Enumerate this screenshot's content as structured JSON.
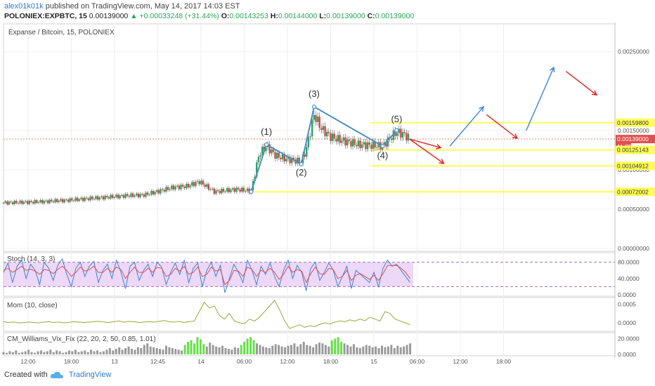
{
  "header": {
    "user": "alex01k01k",
    "published_text": "published on TradingView.com, May 14, 2017 14:03 EST",
    "symbol": "POLONIEX:EXPBTC, 15",
    "last": "0.00139000",
    "change": "+0.00033248 (+31.44%)",
    "open_label": "O:",
    "open": "0.00143253",
    "high_label": "H:",
    "high": "0.00144000",
    "low_label": "L:",
    "low": "0.00139000",
    "close_label": "C:",
    "close": "0.00139000"
  },
  "colors": {
    "up": "#26a65b",
    "down": "#d64545",
    "wave": "#4a90c4",
    "forecast_red": "#e02020",
    "forecast_blue": "#3a86d4",
    "level_line": "#ffff55",
    "stoch_band": "#e6c8f5",
    "stoch_k": "#3a86d4",
    "stoch_d": "#e05050",
    "mom": "#9aa63a",
    "vix_up": "#66e04a",
    "vix_down": "#9a9a9a"
  },
  "chart_data": [
    {
      "type": "candlestick",
      "title": "Expanse / Bitcoin, 15, POLONIEX",
      "ylim": [
        0.0,
        0.0028
      ],
      "y_ticks": [
        "0.00250000",
        "0.00150000",
        "0.00100000",
        "0.00050000",
        "0.00000000"
      ],
      "x_ticks": [
        "12:00",
        "18:00",
        "13",
        "12:45",
        "14",
        "06:00",
        "12:00",
        "18:00",
        "15",
        "06:00",
        "12:00",
        "18:00"
      ],
      "price_labels": [
        {
          "text": "0.00159800",
          "value": 0.001598
        },
        {
          "text": "0.00139000",
          "value": 0.00139,
          "current": true
        },
        {
          "text": "11:35",
          "value": 0.001295,
          "timer": true
        },
        {
          "text": "0.00125143",
          "value": 0.00125143
        },
        {
          "text": "0.00104912",
          "value": 0.00104912
        },
        {
          "text": "0.00072002",
          "value": 0.00072002
        }
      ],
      "horizontal_levels": [
        0.001598,
        0.00125143,
        0.00104912,
        0.00072002
      ],
      "wave_labels": [
        "(1)",
        "(2)",
        "(3)",
        "(4)",
        "(5)"
      ],
      "wave_points": [
        {
          "t": 0.405,
          "v": 0.00072
        },
        {
          "t": 0.43,
          "v": 0.00132
        },
        {
          "t": 0.487,
          "v": 0.00107
        },
        {
          "t": 0.508,
          "v": 0.0018
        },
        {
          "t": 0.62,
          "v": 0.0013
        },
        {
          "t": 0.643,
          "v": 0.0015
        }
      ],
      "price_path": [
        [
          0.0,
          0.00058
        ],
        [
          0.05,
          0.00059
        ],
        [
          0.1,
          0.00061
        ],
        [
          0.15,
          0.00064
        ],
        [
          0.2,
          0.00067
        ],
        [
          0.23,
          0.00068
        ],
        [
          0.255,
          0.00073
        ],
        [
          0.28,
          0.00078
        ],
        [
          0.3,
          0.00079
        ],
        [
          0.32,
          0.00085
        ],
        [
          0.345,
          0.00072
        ],
        [
          0.38,
          0.00075
        ],
        [
          0.405,
          0.00073
        ],
        [
          0.418,
          0.0012
        ],
        [
          0.43,
          0.0013
        ],
        [
          0.445,
          0.00118
        ],
        [
          0.46,
          0.00114
        ],
        [
          0.475,
          0.00112
        ],
        [
          0.487,
          0.0011
        ],
        [
          0.495,
          0.00125
        ],
        [
          0.508,
          0.0017
        ],
        [
          0.52,
          0.00152
        ],
        [
          0.535,
          0.00142
        ],
        [
          0.55,
          0.00138
        ],
        [
          0.565,
          0.00135
        ],
        [
          0.58,
          0.00132
        ],
        [
          0.6,
          0.00131
        ],
        [
          0.62,
          0.0013
        ],
        [
          0.632,
          0.0014
        ],
        [
          0.643,
          0.00148
        ],
        [
          0.655,
          0.00145
        ],
        [
          0.665,
          0.00139
        ]
      ],
      "forecast_arrows": [
        {
          "from": [
            0.664,
            0.00139
          ],
          "to": [
            0.715,
            0.00128
          ],
          "color": "red"
        },
        {
          "from": [
            0.664,
            0.00139
          ],
          "to": [
            0.72,
            0.00108
          ],
          "color": "red"
        },
        {
          "from": [
            0.73,
            0.0013
          ],
          "to": [
            0.785,
            0.0018
          ],
          "color": "blue"
        },
        {
          "from": [
            0.79,
            0.0017
          ],
          "to": [
            0.84,
            0.0014
          ],
          "color": "red"
        },
        {
          "from": [
            0.855,
            0.0015
          ],
          "to": [
            0.9,
            0.0023
          ],
          "color": "blue"
        },
        {
          "from": [
            0.92,
            0.00225
          ],
          "to": [
            0.97,
            0.00195
          ],
          "color": "red"
        }
      ]
    },
    {
      "type": "line",
      "title": "Stoch (14, 3, 3)",
      "ylim": [
        0,
        100
      ],
      "y_ticks": [
        "80.0000",
        "40.0000",
        "0.0000"
      ],
      "band": [
        20,
        80
      ],
      "series": [
        {
          "name": "%K",
          "values": [
            55,
            78,
            30,
            70,
            85,
            40,
            75,
            60,
            25,
            80,
            65,
            35,
            72,
            88,
            50,
            20,
            65,
            80,
            45,
            70,
            82,
            30,
            60,
            75,
            40,
            85,
            55,
            15,
            70,
            80,
            35,
            60,
            75,
            45,
            80,
            68,
            25,
            55,
            78,
            50,
            85,
            30,
            65,
            78,
            20,
            60,
            80,
            45,
            72,
            5,
            40,
            75,
            55,
            30,
            85,
            60,
            25,
            70,
            50,
            78,
            45,
            20,
            60,
            85,
            40,
            72,
            55,
            10,
            65,
            80,
            35,
            55,
            78,
            60,
            20,
            45,
            70,
            15,
            60,
            50,
            40,
            30,
            55,
            20,
            65,
            85,
            70,
            75,
            60,
            45,
            30
          ]
        },
        {
          "name": "%D",
          "values": [
            60,
            65,
            55,
            62,
            70,
            60,
            63,
            58,
            50,
            62,
            60,
            52,
            62,
            70,
            60,
            45,
            55,
            68,
            58,
            62,
            70,
            55,
            55,
            65,
            55,
            68,
            62,
            40,
            55,
            68,
            55,
            55,
            65,
            55,
            68,
            65,
            45,
            50,
            65,
            58,
            70,
            50,
            55,
            68,
            45,
            50,
            68,
            58,
            62,
            25,
            35,
            60,
            58,
            45,
            68,
            62,
            45,
            60,
            55,
            65,
            55,
            38,
            50,
            70,
            55,
            62,
            58,
            30,
            52,
            68,
            52,
            50,
            65,
            62,
            40,
            45,
            60,
            35,
            48,
            52,
            45,
            38,
            48,
            35,
            52,
            72,
            72,
            72,
            65,
            55,
            40
          ]
        }
      ]
    },
    {
      "type": "line",
      "title": "Mom (10, close)",
      "y_ticks": [
        "0.0005",
        "0.0000"
      ],
      "series": [
        {
          "name": "Mom",
          "values": [
            3e-05,
            1e-05,
            2e-05,
            0.0,
            1e-05,
            2e-05,
            1e-05,
            0.0,
            2e-05,
            3e-05,
            1e-05,
            2e-05,
            0.0,
            1e-05,
            3e-05,
            2e-05,
            1e-05,
            2e-05,
            3e-05,
            4e-05,
            2e-05,
            1e-05,
            3e-05,
            5e-05,
            2e-05,
            4e-05,
            3e-05,
            1e-05,
            2e-05,
            3e-05,
            2e-05,
            4e-05,
            6e-05,
            3e-05,
            2e-05,
            4e-05,
            1e-05,
            3e-05,
            5e-05,
            0.0003,
            0.00055,
            0.0004,
            0.00045,
            0.0002,
            0.0001,
            0.00025,
            5e-05,
            0.0,
            -2e-05,
            0.0001,
            5e-05,
            0.00015,
            0.0003,
            0.00045,
            0.0006,
            0.00035,
            5e-05,
            -0.00015,
            -0.0001,
            -5e-05,
            -0.00012,
            -8e-05,
            -0.0001,
            -4e-05,
            0.0,
            -3e-05,
            2e-05,
            5e-05,
            3e-05,
            8e-05,
            5e-05,
            0.0001,
            6e-05,
            0.00015,
            0.0001,
            5e-05,
            0.0003,
            0.00025,
            0.0001,
            5e-05,
            0.0,
            -5e-05
          ]
        }
      ]
    },
    {
      "type": "bar",
      "title": "CM_Williams_Vix_Fix (22, 20, 2, 50, 0.85, 1.01)",
      "y_ticks": [
        "20.0000",
        "0.0000"
      ],
      "series": [
        {
          "name": "Vix",
          "values": [
            3,
            2,
            4,
            3,
            5,
            2,
            3,
            4,
            6,
            3,
            2,
            4,
            5,
            3,
            4,
            6,
            3,
            5,
            4,
            2,
            3,
            5,
            4,
            6,
            3,
            4,
            5,
            3,
            6,
            4,
            5,
            3,
            4,
            6,
            8,
            5,
            7,
            9,
            6,
            8,
            10,
            7,
            6,
            9,
            8,
            12,
            14,
            10,
            9,
            8,
            7,
            6,
            11,
            9,
            8,
            7,
            6,
            5,
            12,
            16,
            18,
            14,
            22,
            19,
            13,
            10,
            15,
            12,
            10,
            9,
            11,
            8,
            7,
            6,
            9,
            8,
            12,
            16,
            20,
            22,
            18,
            14,
            12,
            10,
            9,
            8,
            11,
            13,
            12,
            10,
            9,
            11,
            12,
            14,
            10,
            13,
            16,
            12,
            11,
            9,
            13,
            15,
            14,
            12,
            10,
            18,
            20,
            22,
            16,
            14,
            12,
            10,
            13,
            9,
            8,
            10,
            12,
            11,
            9,
            10,
            8,
            11,
            9,
            10,
            12,
            8,
            11,
            9,
            10,
            12,
            14
          ]
        },
        {
          "name": "flag",
          "values": [
            0,
            0,
            0,
            0,
            0,
            0,
            0,
            0,
            0,
            0,
            0,
            0,
            0,
            0,
            0,
            0,
            0,
            0,
            0,
            0,
            0,
            0,
            0,
            0,
            0,
            0,
            0,
            0,
            0,
            0,
            0,
            0,
            0,
            0,
            0,
            0,
            0,
            0,
            0,
            0,
            0,
            0,
            0,
            0,
            0,
            0,
            0,
            0,
            0,
            0,
            0,
            0,
            0,
            0,
            0,
            0,
            0,
            0,
            1,
            1,
            1,
            1,
            1,
            1,
            1,
            0,
            0,
            0,
            0,
            0,
            0,
            0,
            0,
            0,
            0,
            0,
            1,
            1,
            1,
            1,
            1,
            0,
            0,
            0,
            0,
            0,
            0,
            0,
            0,
            0,
            0,
            0,
            0,
            0,
            0,
            0,
            0,
            0,
            0,
            0,
            0,
            0,
            0,
            0,
            0,
            1,
            1,
            1,
            1,
            0,
            0,
            0,
            0,
            0,
            0,
            0,
            0,
            0,
            0,
            0,
            0,
            0,
            0,
            0,
            0,
            0,
            0,
            0,
            0,
            0
          ]
        }
      ]
    }
  ],
  "footer": {
    "created_with": "Created with",
    "brand": "TradingView"
  }
}
